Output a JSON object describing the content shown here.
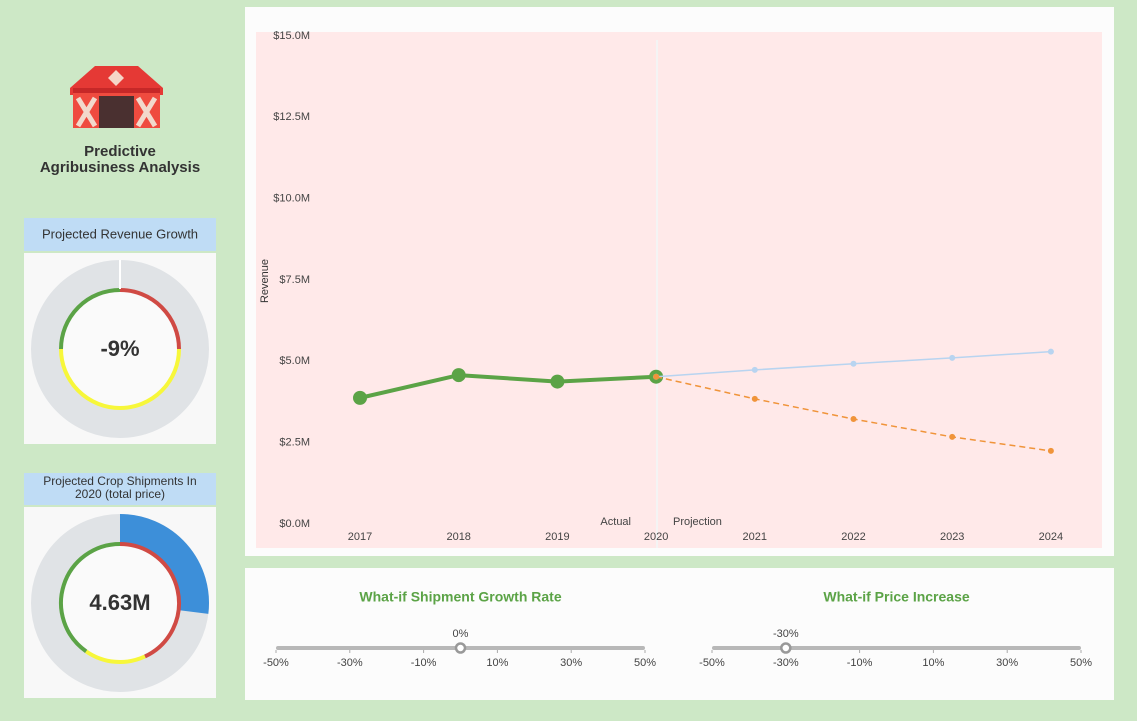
{
  "header": {
    "title_lines": [
      "Predictive",
      "Agribusiness Analysis"
    ]
  },
  "gauges": [
    {
      "title": "Projected Revenue Growth",
      "value": -9,
      "value_label": "-9%"
    },
    {
      "title_lines": [
        "Projected Crop Shipments In",
        "2020 (total price)"
      ],
      "value": 4630000,
      "value_label": "4.63M"
    }
  ],
  "chart_data": {
    "type": "line",
    "ylabel": "Revenue",
    "categories": [
      "2017",
      "2018",
      "2019",
      "2020",
      "2021",
      "2022",
      "2023",
      "2024"
    ],
    "annotations": [
      "Actual",
      "Projection"
    ],
    "series": [
      {
        "color": "#5ba346",
        "values": [
          4000000,
          4700000,
          4500000,
          4650000,
          null,
          null,
          null,
          null
        ]
      },
      {
        "color": "#b8d4f0",
        "values": [
          null,
          null,
          null,
          4650000,
          4860000,
          5050000,
          5230000,
          5420000
        ]
      },
      {
        "color": "#f0943a",
        "dashed": true,
        "values": [
          null,
          null,
          null,
          4650000,
          3970000,
          3350000,
          2800000,
          2370000
        ]
      }
    ],
    "ylim": [
      0,
      15000000
    ],
    "yticks": [
      {
        "value": 0,
        "label": "$0.0M"
      },
      {
        "value": 2500000,
        "label": "$2.5M"
      },
      {
        "value": 5000000,
        "label": "$5.0M"
      },
      {
        "value": 7500000,
        "label": "$7.5M"
      },
      {
        "value": 10000000,
        "label": "$10.0M"
      },
      {
        "value": 12500000,
        "label": "$12.5M"
      },
      {
        "value": 15000000,
        "label": "$15.0M"
      }
    ]
  },
  "sliders": [
    {
      "title": "What-if Shipment Growth Rate",
      "value": 0,
      "value_label": "0%",
      "range": [
        -50,
        50
      ],
      "ticks": [
        {
          "value": -50,
          "label": "-50%"
        },
        {
          "value": -30,
          "label": "-30%"
        },
        {
          "value": -10,
          "label": "-10%"
        },
        {
          "value": 10,
          "label": "10%"
        },
        {
          "value": 30,
          "label": "30%"
        },
        {
          "value": 50,
          "label": "50%"
        }
      ]
    },
    {
      "title": "What-if Price Increase",
      "value": -30,
      "value_label": "-30%",
      "range": [
        -50,
        50
      ],
      "ticks": [
        {
          "value": -50,
          "label": "-50%"
        },
        {
          "value": -30,
          "label": "-30%"
        },
        {
          "value": -10,
          "label": "-10%"
        },
        {
          "value": 10,
          "label": "10%"
        },
        {
          "value": 30,
          "label": "30%"
        },
        {
          "value": 50,
          "label": "50%"
        }
      ]
    }
  ]
}
